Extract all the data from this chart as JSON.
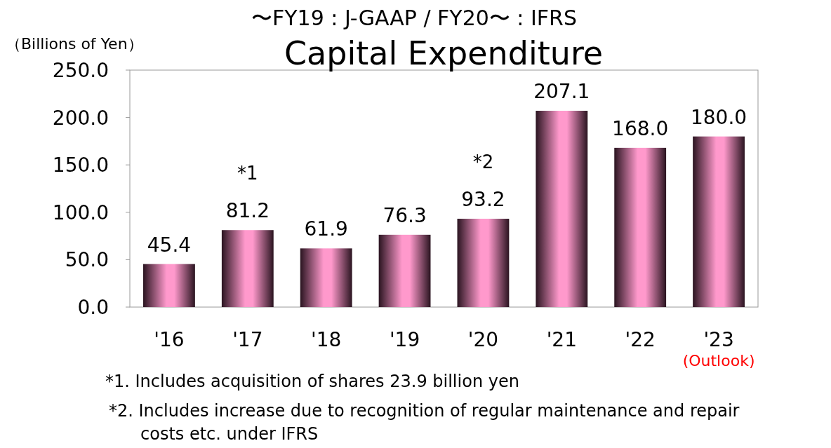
{
  "chart_data": {
    "type": "bar",
    "title": "Capital Expenditure",
    "subtitle": "〜FY19 : J-GAAP / FY20〜 : IFRS",
    "ylabel": "（Billions of Yen）",
    "categories": [
      "'16",
      "'17",
      "'18",
      "'19",
      "'20",
      "'21",
      "'22",
      "'23"
    ],
    "values": [
      45.4,
      81.2,
      61.9,
      76.3,
      93.2,
      207.1,
      168.0,
      180.0
    ],
    "value_labels": [
      "45.4",
      "81.2",
      "61.9",
      "76.3",
      "93.2",
      "207.1",
      "168.0",
      "180.0"
    ],
    "color": "#ff99cc",
    "ylim": [
      0,
      250
    ],
    "yticks": [
      {
        "value": 0,
        "label": "0.0"
      },
      {
        "value": 50,
        "label": "50.0"
      },
      {
        "value": 100,
        "label": "100.0"
      },
      {
        "value": 150,
        "label": "150.0"
      },
      {
        "value": 200,
        "label": "200.0"
      },
      {
        "value": 250,
        "label": "250.0"
      }
    ],
    "grid": false,
    "annotations": [
      {
        "text": "*1",
        "x": "'17",
        "y": 81.2
      },
      {
        "text": "*2",
        "x": "'20",
        "y": 93.2
      },
      "(Outlook)",
      "*1. Includes acquisition of shares 23.9 billion yen",
      "*2. Includes increase due to recognition of regular maintenance and repair costs etc. under IFRS"
    ]
  }
}
